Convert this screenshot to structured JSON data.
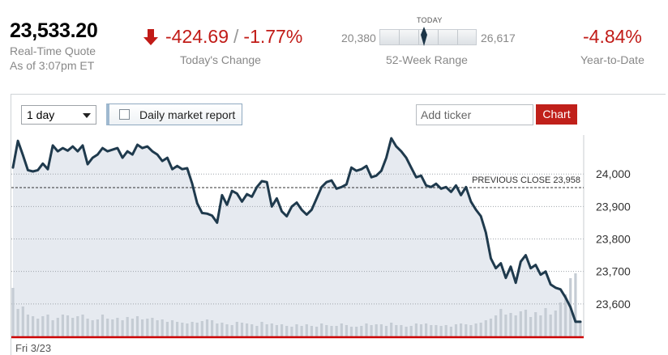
{
  "quote": {
    "value": "23,533.20",
    "label": "Real-Time Quote",
    "as_of": "As of 3:07pm ET"
  },
  "change": {
    "points": "-424.69",
    "separator": "/",
    "percent": "-1.77%",
    "label": "Today's Change",
    "color": "#c11b17",
    "icon": "arrow-down-icon"
  },
  "week52": {
    "low": "20,380",
    "high": "26,617",
    "today_label": "TODAY",
    "label": "52-Week Range",
    "today_position_fraction": 0.46
  },
  "ytd": {
    "value": "-4.84%",
    "label": "Year-to-Date",
    "color": "#c11b17"
  },
  "controls": {
    "period_selected": "1 day",
    "report_label": "Daily market report",
    "ticker_placeholder": "Add ticker",
    "chart_button": "Chart",
    "accent": "#c0201a"
  },
  "chart_data": {
    "type": "line",
    "previous_close_label": "PREVIOUS CLOSE 23,958",
    "previous_close": 23958,
    "ylim": [
      23500,
      24120
    ],
    "yticks": [
      24000,
      23900,
      23800,
      23700,
      23600
    ],
    "ytick_labels": [
      "24,000",
      "23,900",
      "23,800",
      "23,700",
      "23,600"
    ],
    "x_label": "Fri 3/23",
    "grid": true,
    "line_color": "#1f3a4d",
    "fill_color": "#e6eaf0",
    "volume_color": "#c5ccd4",
    "baseline_color": "#cc0000",
    "series": [
      {
        "values": [
          24020,
          24102,
          24058,
          24012,
          24008,
          24012,
          24032,
          24015,
          24088,
          24070,
          24080,
          24072,
          24085,
          24070,
          24088,
          24030,
          24050,
          24060,
          24080,
          24070,
          24075,
          24080,
          24050,
          24070,
          24060,
          24090,
          24080,
          24085,
          24070,
          24060,
          24040,
          24050,
          24015,
          24025,
          24015,
          24018,
          23970,
          23910,
          23880,
          23878,
          23872,
          23850,
          23935,
          23905,
          23948,
          23940,
          23915,
          23938,
          23930,
          23960,
          23978,
          23975,
          23900,
          23925,
          23885,
          23870,
          23900,
          23912,
          23890,
          23875,
          23890,
          23925,
          23960,
          23975,
          23980,
          23955,
          23960,
          23968,
          24020,
          24010,
          24015,
          24025,
          23990,
          23995,
          24010,
          24050,
          24110,
          24085,
          24070,
          24050,
          24020,
          23990,
          23995,
          23965,
          23960,
          23970,
          23955,
          23960,
          23945,
          23965,
          23935,
          23960,
          23915,
          23890,
          23870,
          23820,
          23740,
          23710,
          23725,
          23680,
          23715,
          23665,
          23730,
          23750,
          23710,
          23720,
          23690,
          23700,
          23660,
          23650,
          23645,
          23620,
          23590,
          23545,
          23545
        ],
        "volume": [
          60,
          34,
          37,
          27,
          25,
          22,
          25,
          27,
          20,
          23,
          27,
          26,
          23,
          25,
          27,
          22,
          20,
          21,
          27,
          22,
          21,
          23,
          20,
          24,
          22,
          25,
          21,
          22,
          23,
          20,
          21,
          18,
          20,
          18,
          17,
          16,
          18,
          17,
          19,
          21,
          20,
          16,
          17,
          15,
          14,
          18,
          17,
          16,
          15,
          13,
          18,
          15,
          16,
          14,
          15,
          13,
          12,
          15,
          13,
          15,
          13,
          12,
          16,
          14,
          13,
          13,
          16,
          14,
          12,
          12,
          13,
          16,
          14,
          15,
          15,
          13,
          17,
          14,
          14,
          12,
          13,
          16,
          15,
          16,
          14,
          14,
          13,
          14,
          12,
          15,
          16,
          15,
          14,
          16,
          17,
          20,
          22,
          26,
          34,
          27,
          29,
          26,
          31,
          33,
          24,
          30,
          26,
          35,
          27,
          32,
          42,
          52,
          72,
          78,
          18
        ]
      }
    ]
  }
}
